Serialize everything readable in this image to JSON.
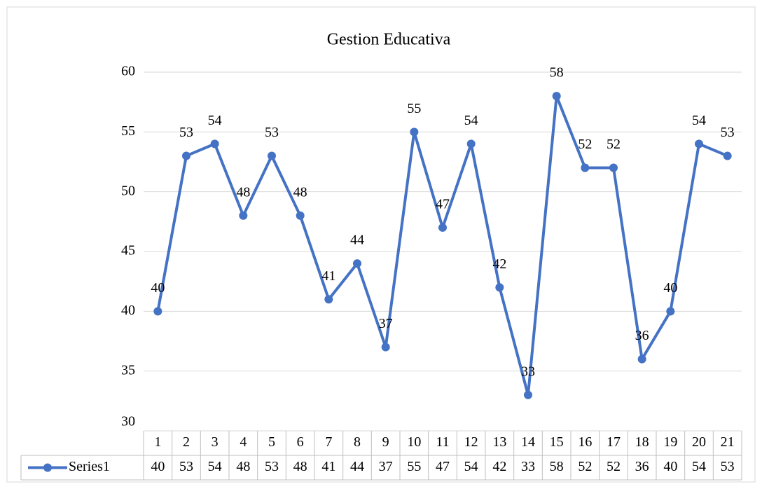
{
  "chart_data": {
    "type": "line",
    "title": "Gestion Educativa",
    "categories": [
      1,
      2,
      3,
      4,
      5,
      6,
      7,
      8,
      9,
      10,
      11,
      12,
      13,
      14,
      15,
      16,
      17,
      18,
      19,
      20,
      21
    ],
    "series": [
      {
        "name": "Series1",
        "color": "#4472c4",
        "values": [
          40,
          53,
          54,
          48,
          53,
          48,
          41,
          44,
          37,
          55,
          47,
          54,
          42,
          33,
          58,
          52,
          52,
          36,
          40,
          54,
          53
        ]
      }
    ],
    "ylim": [
      30,
      60
    ],
    "yticks": [
      30,
      35,
      40,
      45,
      50,
      55,
      60
    ],
    "grid": true,
    "data_table": true
  }
}
